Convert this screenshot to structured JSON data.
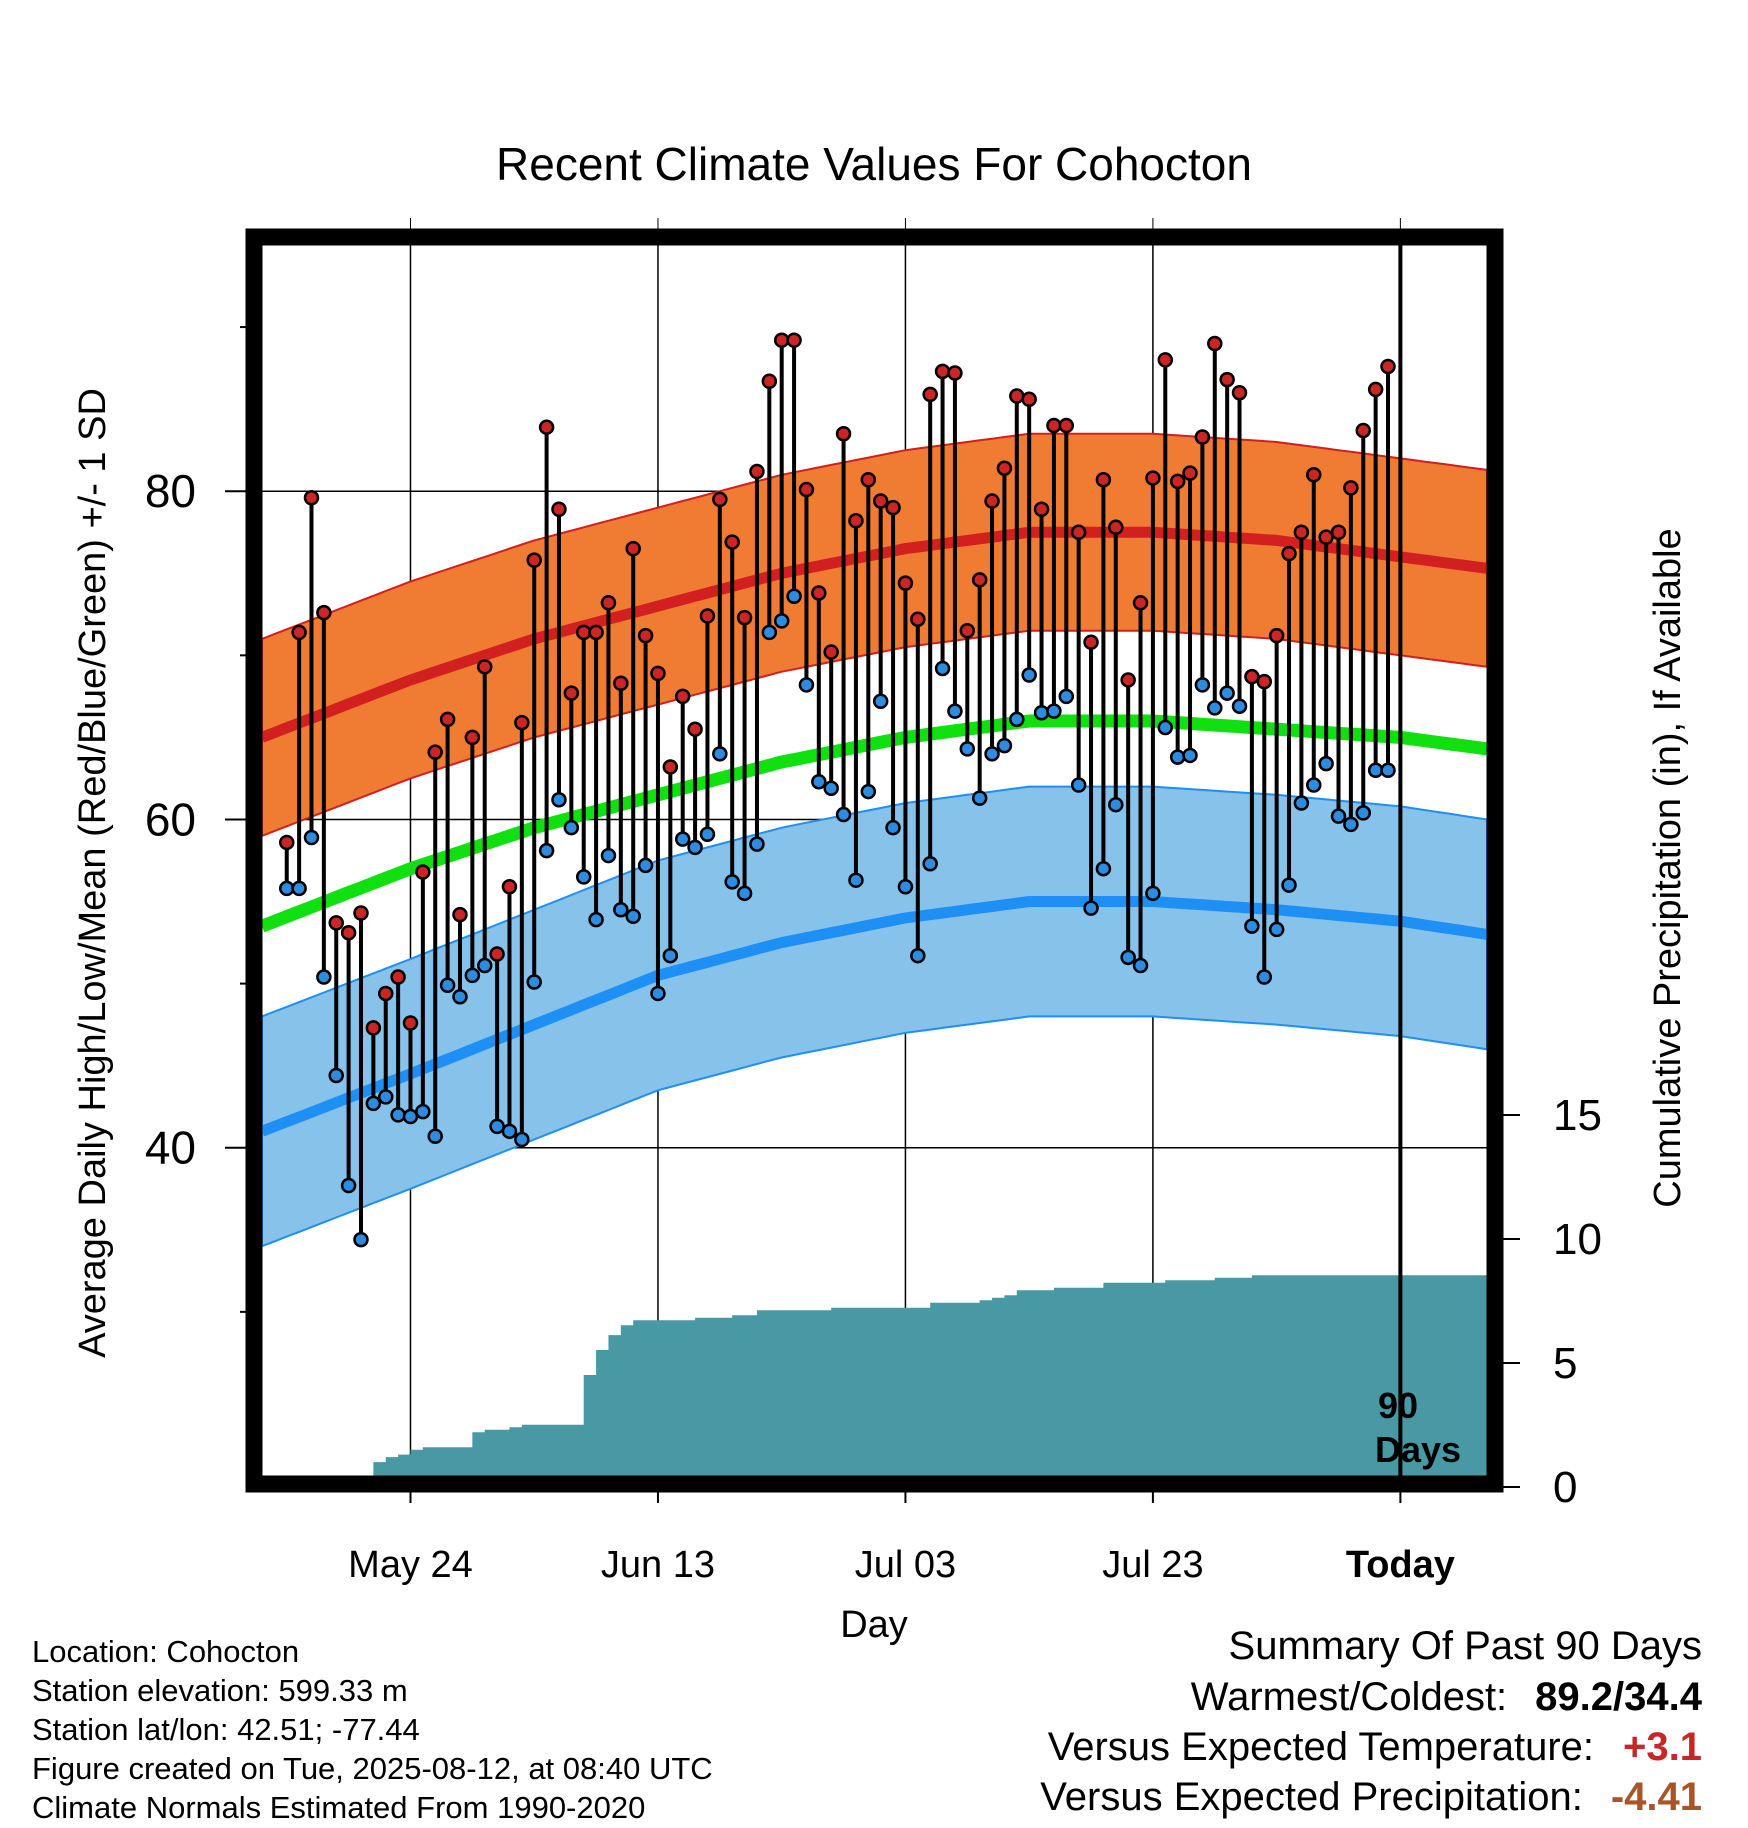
{
  "chart_data": {
    "type": "line",
    "title": "Recent Climate Values For Cohocton",
    "xlabel": "Day",
    "ylabel": "Average Daily High/Low/Mean (Red/Blue/Green) +/- 1 SD",
    "y2label": "Cumulative Precipitation (in), If Available",
    "ylim": [
      20,
      95
    ],
    "y2lim": [
      0,
      50
    ],
    "xlim": [
      -2,
      97
    ],
    "x_ticks": [
      {
        "day": 10,
        "label": "May 24"
      },
      {
        "day": 30,
        "label": "Jun 13"
      },
      {
        "day": 50,
        "label": "Jul 03"
      },
      {
        "day": 70,
        "label": "Jul 23"
      },
      {
        "day": 90,
        "label": "Today"
      }
    ],
    "y_ticks": [
      "40",
      "60",
      "80"
    ],
    "y2_ticks": [
      "0",
      "5",
      "10",
      "15"
    ],
    "today_marker": {
      "day": 90,
      "label_line1": "90",
      "label_line2": "Days"
    },
    "normal_days": [
      -2,
      10,
      20,
      30,
      40,
      50,
      60,
      70,
      80,
      90,
      97
    ],
    "normal_high": [
      65.0,
      68.5,
      71.0,
      73.0,
      75.0,
      76.5,
      77.5,
      77.5,
      77.0,
      76.0,
      75.3
    ],
    "normal_high_sd": 6.0,
    "normal_mean": [
      53.5,
      57.0,
      59.5,
      61.5,
      63.5,
      65.0,
      66.0,
      66.0,
      65.5,
      65.0,
      64.3
    ],
    "normal_low": [
      41.0,
      44.5,
      47.5,
      50.5,
      52.5,
      54.0,
      55.0,
      55.0,
      54.5,
      53.8,
      53.0
    ],
    "normal_low_sd": 7.0,
    "series": [
      {
        "name": "High",
        "values": [
          58.6,
          71.4,
          79.6,
          72.6,
          53.7,
          53.1,
          54.3,
          47.3,
          49.4,
          50.4,
          47.6,
          56.8,
          64.1,
          66.1,
          54.2,
          65.0,
          69.3,
          51.8,
          55.9,
          65.9,
          75.8,
          83.9,
          78.9,
          67.7,
          71.4,
          71.4,
          73.2,
          68.3,
          76.5,
          71.2,
          68.9,
          63.2,
          67.5,
          65.5,
          72.4,
          79.5,
          76.9,
          72.3,
          81.2,
          86.7,
          89.2,
          89.2,
          80.1,
          73.8,
          70.2,
          83.5,
          78.2,
          80.7,
          79.4,
          79.0,
          74.4,
          72.2,
          85.9,
          87.3,
          87.2,
          71.5,
          74.6,
          79.4,
          81.4,
          85.8,
          85.6,
          78.9,
          84.0,
          84.0,
          77.5,
          70.8,
          80.7,
          77.8,
          68.5,
          73.2,
          80.8,
          88.0,
          80.6,
          81.1,
          83.3,
          89.0,
          86.8,
          86.0,
          68.7,
          68.4,
          71.2,
          76.2,
          77.5,
          81.0,
          77.2,
          77.5,
          80.2,
          83.7,
          86.2,
          87.6
        ]
      },
      {
        "name": "Low",
        "values": [
          55.8,
          55.8,
          58.9,
          50.4,
          44.4,
          37.7,
          34.4,
          42.7,
          43.1,
          42.0,
          41.9,
          42.2,
          40.7,
          49.9,
          49.2,
          50.5,
          51.1,
          41.3,
          41.0,
          40.5,
          50.1,
          58.1,
          61.2,
          59.5,
          56.5,
          53.9,
          57.8,
          54.5,
          54.1,
          57.2,
          49.4,
          51.7,
          58.8,
          58.3,
          59.1,
          64.0,
          56.2,
          55.5,
          58.5,
          71.4,
          72.1,
          73.6,
          68.2,
          62.3,
          61.9,
          60.3,
          56.3,
          61.7,
          67.2,
          59.5,
          55.9,
          51.7,
          57.3,
          69.2,
          66.6,
          64.3,
          61.3,
          64.0,
          64.5,
          66.1,
          68.8,
          66.5,
          66.6,
          67.5,
          62.1,
          54.6,
          57.0,
          60.9,
          51.6,
          51.1,
          55.5,
          65.6,
          63.8,
          63.9,
          68.2,
          66.8,
          67.7,
          66.9,
          53.5,
          50.4,
          53.3,
          56.0,
          61.0,
          62.1,
          63.4,
          60.2,
          59.7,
          60.4,
          63.0,
          63.0
        ]
      },
      {
        "name": "Cumulative Precipitation",
        "values": [
          0,
          0,
          0,
          0,
          0,
          0,
          0.3,
          1.0,
          1.2,
          1.3,
          1.5,
          1.6,
          1.6,
          1.6,
          1.6,
          2.2,
          2.3,
          2.3,
          2.4,
          2.5,
          2.5,
          2.5,
          2.5,
          2.5,
          4.5,
          5.5,
          6.1,
          6.5,
          6.7,
          6.7,
          6.7,
          6.7,
          6.7,
          6.8,
          6.8,
          6.8,
          6.9,
          6.9,
          7.1,
          7.1,
          7.1,
          7.1,
          7.1,
          7.1,
          7.2,
          7.2,
          7.2,
          7.2,
          7.2,
          7.2,
          7.2,
          7.2,
          7.4,
          7.4,
          7.4,
          7.4,
          7.5,
          7.6,
          7.7,
          7.9,
          7.9,
          7.9,
          8.0,
          8.0,
          8.0,
          8.0,
          8.2,
          8.2,
          8.2,
          8.2,
          8.2,
          8.3,
          8.3,
          8.3,
          8.3,
          8.4,
          8.4,
          8.4,
          8.5,
          8.5,
          8.5,
          8.5,
          8.5,
          8.5,
          8.5,
          8.5,
          8.5,
          8.5,
          8.5,
          8.5
        ]
      }
    ]
  },
  "colors": {
    "high_band": "#f07b32",
    "high_line": "#d21f1f",
    "mean_line": "#10e010",
    "low_band": "#86c2ea",
    "low_line": "#1e8ff4",
    "precip": "#4899a3",
    "high_dot": "#cc2525",
    "low_dot": "#2d8ce0"
  },
  "location": {
    "location_line": "Location: Cohocton",
    "elevation_line": "Station elevation: 599.33 m",
    "latlon_line": "Station lat/lon: 42.51; -77.44",
    "created_line": "Figure created on Tue, 2025-08-12, at 08:40 UTC",
    "normals_line": "Climate Normals Estimated From 1990-2020"
  },
  "summary": {
    "title": "Summary Of Past 90 Days",
    "warmest_label": "Warmest/Coldest:",
    "warmest_value": "89.2/34.4",
    "temp_label": "Versus Expected Temperature:",
    "temp_value": "+3.1",
    "precip_label": "Versus Expected Precipitation:",
    "precip_value": "-4.41"
  }
}
